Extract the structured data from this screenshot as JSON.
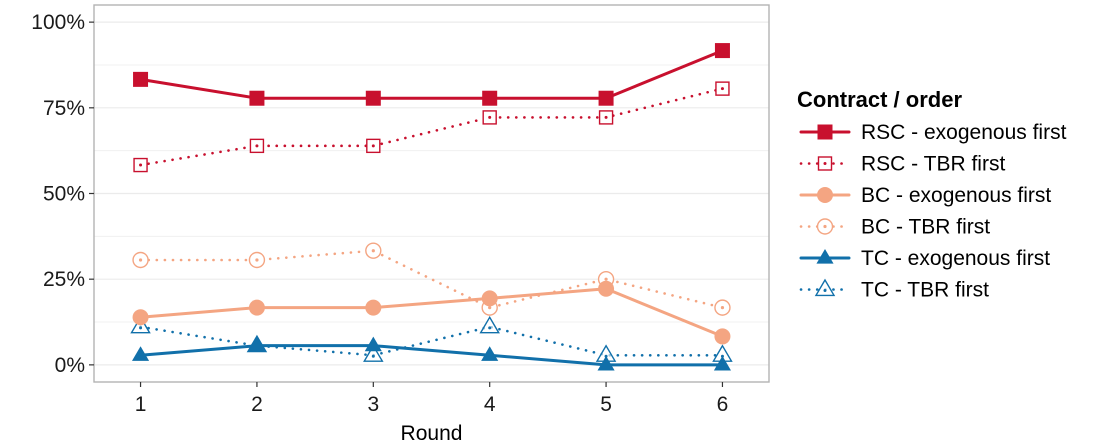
{
  "chart_data": {
    "type": "line",
    "xlabel": "Round",
    "ylabel": "",
    "x": [
      1,
      2,
      3,
      4,
      5,
      6
    ],
    "ylim": [
      0,
      1
    ],
    "y_ticks": [
      0,
      0.25,
      0.5,
      0.75,
      1.0
    ],
    "y_tick_labels": [
      "0%",
      "25%",
      "50%",
      "75%",
      "100%"
    ],
    "x_tick_labels": [
      "1",
      "2",
      "3",
      "4",
      "5",
      "6"
    ],
    "grid": true,
    "legend_position": "right",
    "legend_title": "Contract / order",
    "series": [
      {
        "name": "RSC - exogenous first",
        "values": [
          0.833,
          0.778,
          0.778,
          0.778,
          0.778,
          0.917
        ],
        "color": "#c8102e",
        "line": "solid",
        "marker": "square-filled"
      },
      {
        "name": "RSC - TBR first",
        "values": [
          0.583,
          0.639,
          0.639,
          0.722,
          0.722,
          0.806
        ],
        "color": "#c8102e",
        "line": "dotted",
        "marker": "square-open-dot"
      },
      {
        "name": "BC - exogenous first",
        "values": [
          0.139,
          0.167,
          0.167,
          0.194,
          0.222,
          0.083
        ],
        "color": "#f4a582",
        "line": "solid",
        "marker": "circle-filled"
      },
      {
        "name": "BC - TBR first",
        "values": [
          0.306,
          0.306,
          0.333,
          0.167,
          0.25,
          0.167
        ],
        "color": "#f4a582",
        "line": "dotted",
        "marker": "circle-open-dot"
      },
      {
        "name": "TC - exogenous first",
        "values": [
          0.028,
          0.056,
          0.056,
          0.028,
          0.0,
          0.0
        ],
        "color": "#1170aa",
        "line": "solid",
        "marker": "triangle-filled"
      },
      {
        "name": "TC - TBR first",
        "values": [
          0.111,
          0.056,
          0.028,
          0.111,
          0.028,
          0.028
        ],
        "color": "#1170aa",
        "line": "dotted",
        "marker": "triangle-open-dot"
      }
    ]
  }
}
